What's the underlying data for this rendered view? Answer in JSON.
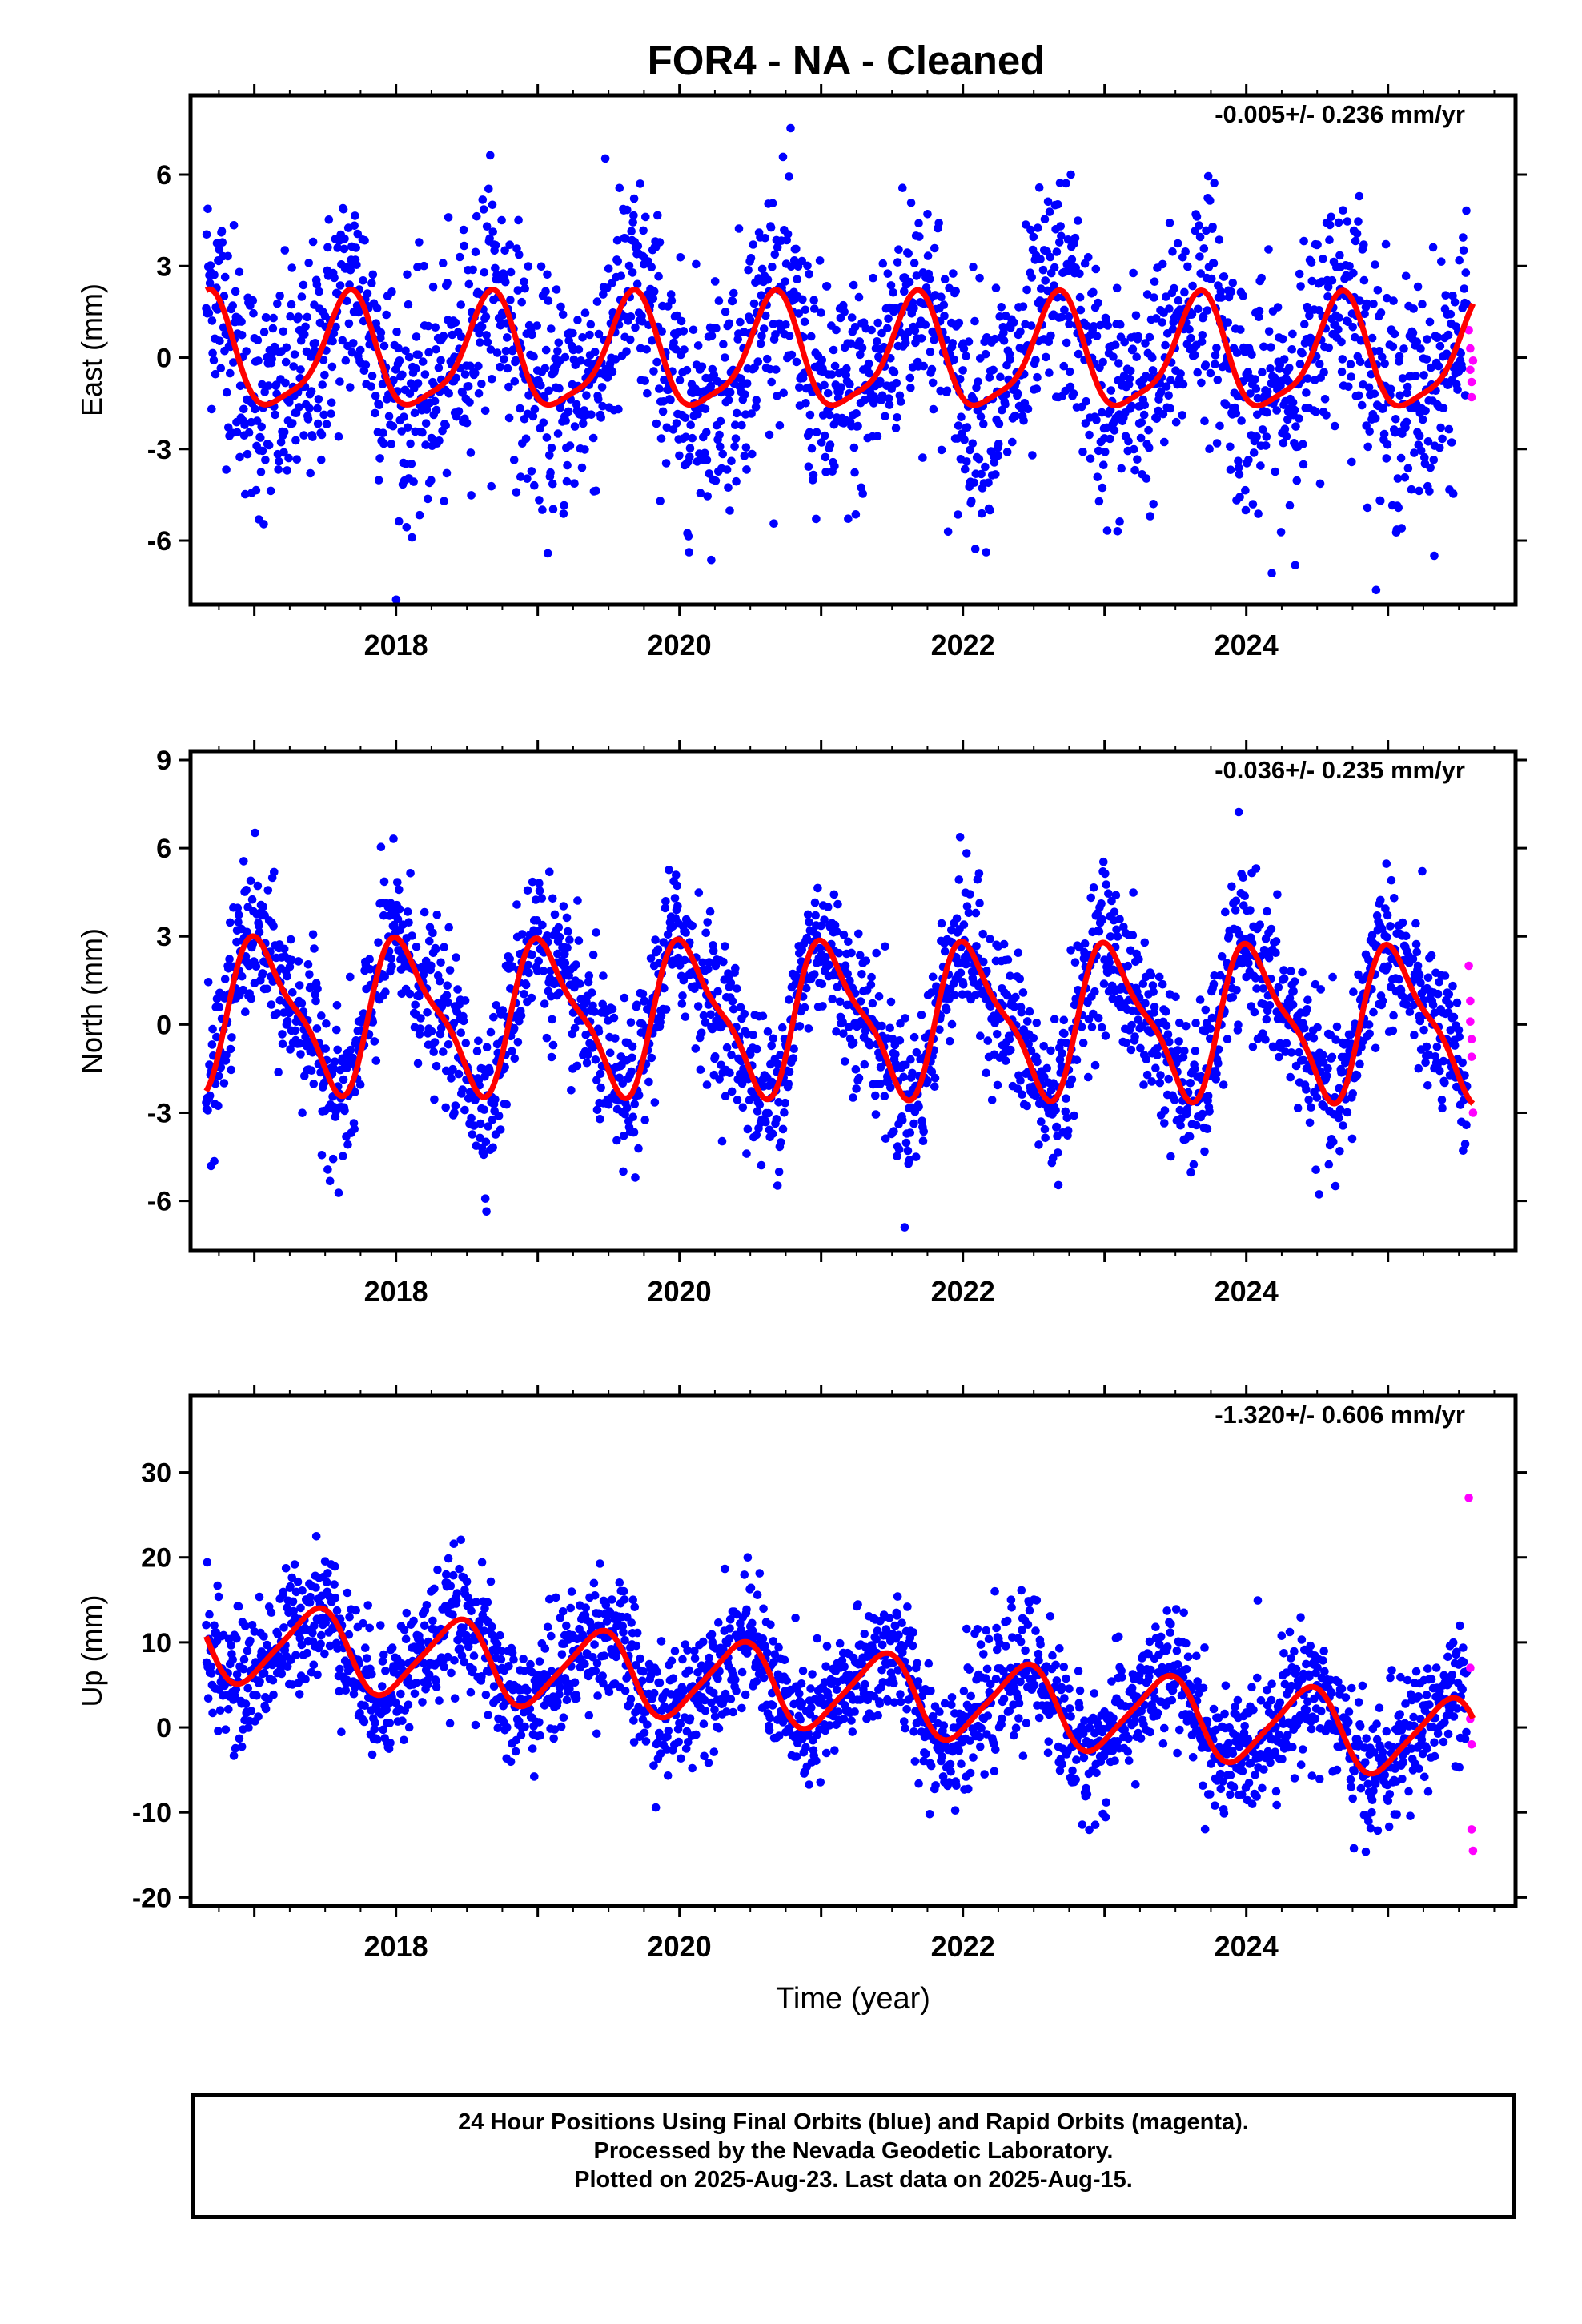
{
  "title": "FOR4  - NA - Cleaned",
  "footer": {
    "line1": "24 Hour Positions Using Final Orbits (blue) and Rapid Orbits (magenta).",
    "line2": "Processed by the Nevada Geodetic Laboratory.",
    "line3": "Plotted on 2025-Aug-23. Last data on 2025-Aug-15."
  },
  "colors": {
    "final": "#0000ff",
    "rapid": "#ff00ff",
    "model": "#ff0000",
    "frame": "#000000"
  },
  "chart_data": [
    {
      "type": "scatter",
      "panel": "east",
      "ylabel": "East (mm)",
      "xlabel": "",
      "rate_label": "-0.005+/- 0.236 mm/yr",
      "xlim": [
        2016.55,
        2025.9
      ],
      "ylim": [
        -8.1,
        8.6
      ],
      "yticks": [
        -6,
        -3,
        0,
        3,
        6
      ],
      "xticks": [
        2018,
        2020,
        2022,
        2024
      ],
      "model": {
        "offset": 0.0,
        "trend": -0.005,
        "annual_amp": 1.8,
        "annual_phase": 3.7,
        "semi_amp": 0.45,
        "semi_phase": 5.3,
        "noise_sd": 1.9
      },
      "rapid_points": [
        [
          2025.57,
          0.9
        ],
        [
          2025.58,
          0.3
        ],
        [
          2025.58,
          -0.4
        ],
        [
          2025.59,
          -1.3
        ],
        [
          2025.59,
          -0.8
        ],
        [
          2025.6,
          -0.1
        ]
      ]
    },
    {
      "type": "scatter",
      "panel": "north",
      "ylabel": "North (mm)",
      "xlabel": "",
      "rate_label": "-0.036+/- 0.235 mm/yr",
      "xlim": [
        2016.55,
        2025.9
      ],
      "ylim": [
        -7.7,
        9.3
      ],
      "yticks": [
        -6,
        -3,
        0,
        3,
        6,
        9
      ],
      "xticks": [
        2018,
        2020,
        2022,
        2024
      ],
      "model": {
        "offset": 0.2,
        "trend": -0.036,
        "annual_amp": 2.4,
        "annual_phase": 1.2,
        "semi_amp": 0.7,
        "semi_phase": 2.5,
        "noise_sd": 1.3
      },
      "rapid_points": [
        [
          2025.57,
          2.0
        ],
        [
          2025.58,
          0.8
        ],
        [
          2025.58,
          0.1
        ],
        [
          2025.59,
          -0.5
        ],
        [
          2025.59,
          -1.1
        ],
        [
          2025.6,
          -3.0
        ]
      ]
    },
    {
      "type": "scatter",
      "panel": "up",
      "ylabel": "Up (mm)",
      "xlabel": "Time (year)",
      "rate_label": "-1.320+/- 0.606 mm/yr",
      "xlim": [
        2016.55,
        2025.9
      ],
      "ylim": [
        -21,
        39
      ],
      "yticks": [
        -20,
        -10,
        0,
        10,
        20,
        30
      ],
      "xticks": [
        2018,
        2020,
        2022,
        2024
      ],
      "model": {
        "offset": 4.5,
        "trend": -1.32,
        "annual_amp": 4.6,
        "annual_phase": 5.2,
        "semi_amp": 0.8,
        "semi_phase": 1.0,
        "noise_sd": 3.8
      },
      "rapid_points": [
        [
          2025.57,
          27.0
        ],
        [
          2025.58,
          7.0
        ],
        [
          2025.58,
          1.0
        ],
        [
          2025.59,
          -2.0
        ],
        [
          2025.59,
          -12.0
        ],
        [
          2025.6,
          -14.5
        ]
      ]
    }
  ]
}
